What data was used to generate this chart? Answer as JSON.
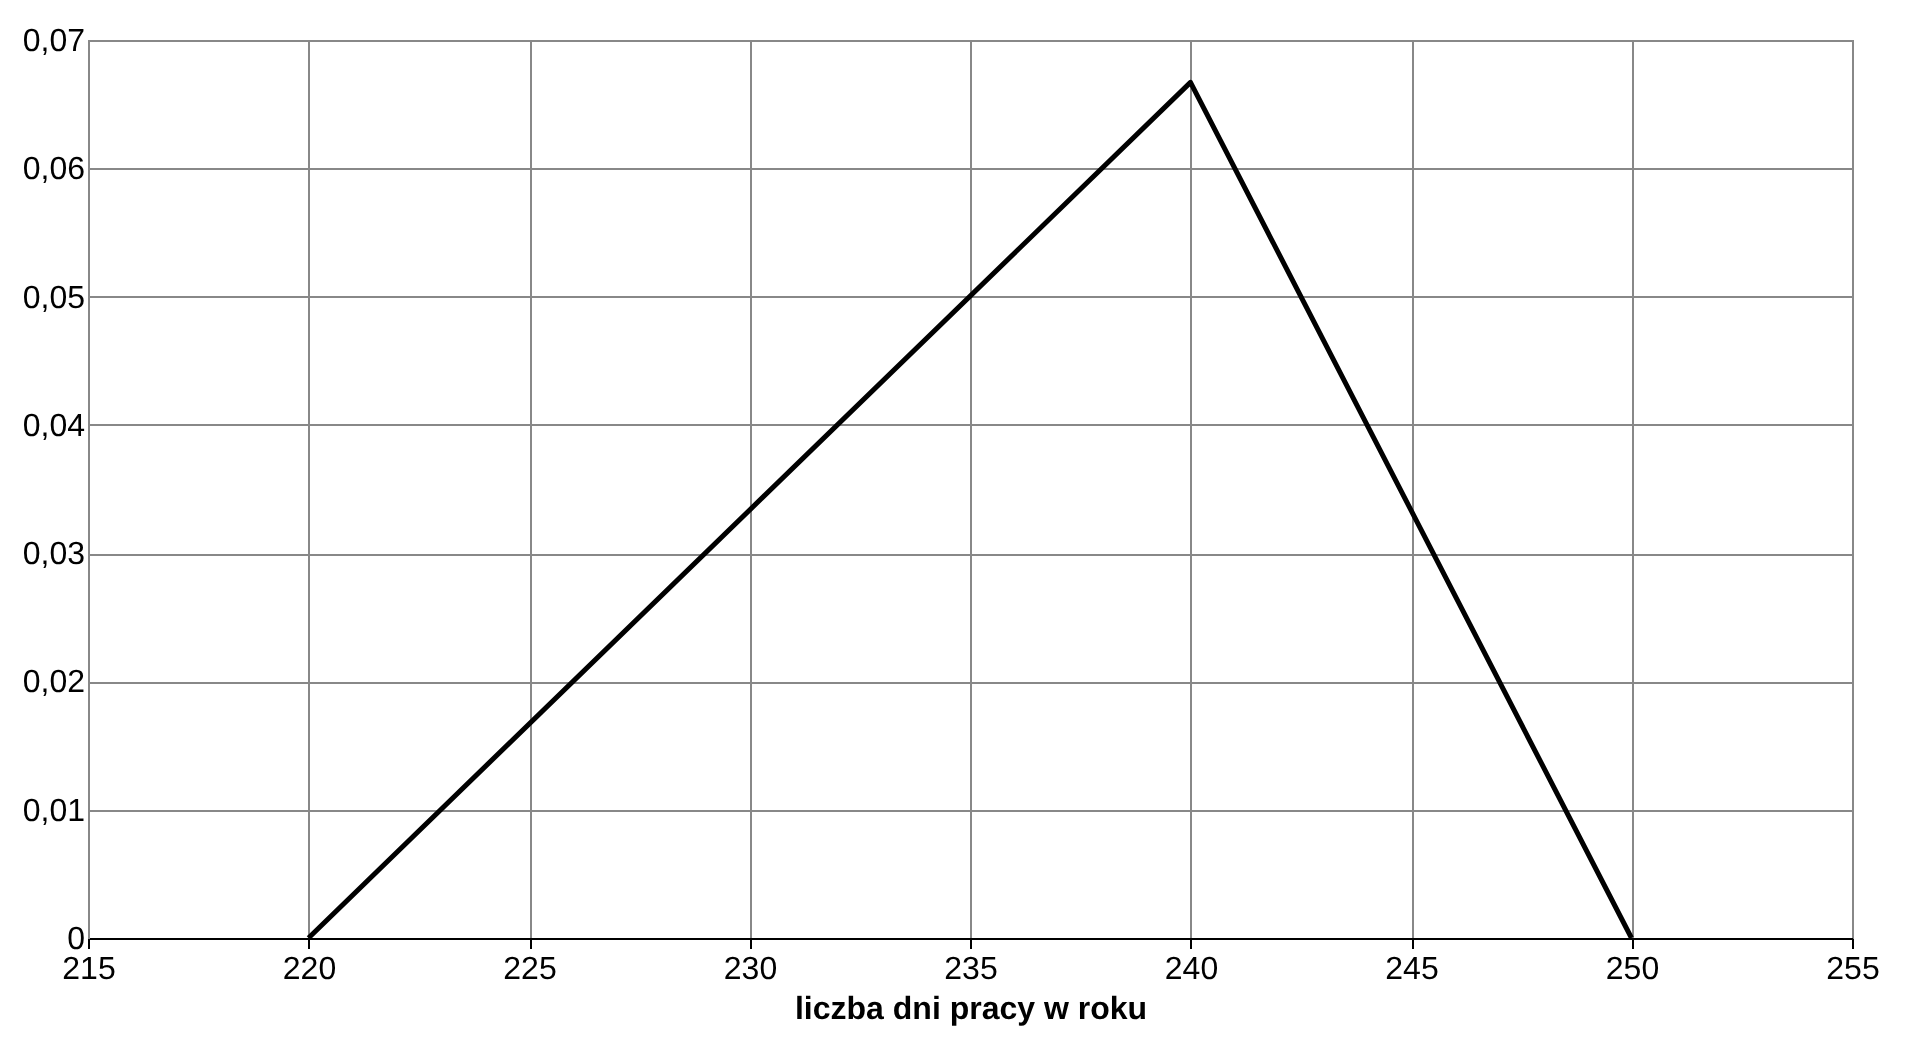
{
  "chart_data": {
    "type": "line",
    "xlabel": "liczba dni pracy w roku",
    "x": [
      220,
      240,
      250
    ],
    "series": [
      {
        "color": "#000000",
        "values": [
          0,
          0.0667,
          0
        ]
      }
    ],
    "xlim": [
      215,
      255
    ],
    "xticks": [
      215,
      220,
      225,
      230,
      235,
      240,
      245,
      250,
      255
    ],
    "ylim": [
      0,
      0.07
    ],
    "yticks": [
      0,
      {
        "value": 0.01,
        "label": "0,01"
      },
      {
        "value": 0.02,
        "label": "0,02"
      },
      {
        "value": 0.03,
        "label": "0,03"
      },
      {
        "value": 0.04,
        "label": "0,04"
      },
      {
        "value": 0.05,
        "label": "0,05"
      },
      {
        "value": 0.06,
        "label": "0,06"
      },
      {
        "value": 0.07,
        "label": "0,07"
      }
    ],
    "grid": true,
    "marker": "none",
    "line_style": "solid"
  }
}
